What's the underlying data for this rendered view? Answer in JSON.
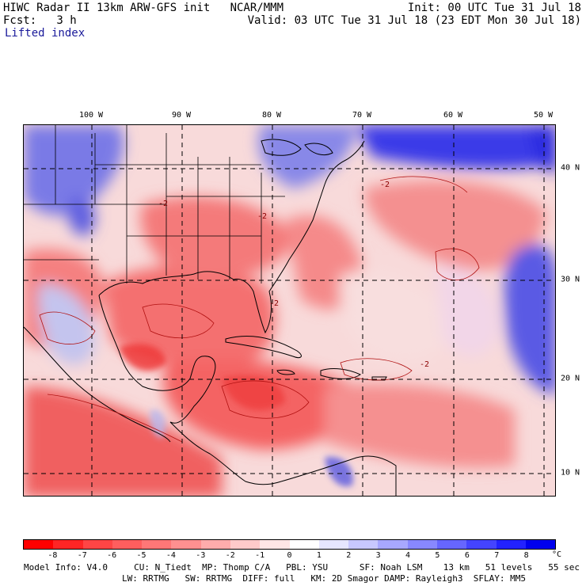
{
  "header": {
    "title": "HIWC Radar II 13km ARW-GFS init   NCAR/MMM",
    "fcst": "Fcst:   3 h",
    "field": "Lifted index",
    "init": "Init: 00 UTC Tue 31 Jul 18",
    "valid": "Valid: 03 UTC Tue 31 Jul 18 (23 EDT Mon 30 Jul 18)"
  },
  "map": {
    "lon_labels": [
      "100 W",
      "90 W",
      "80 W",
      "70 W",
      "60 W",
      "50 W"
    ],
    "lat_labels": [
      "40 N",
      "30 N",
      "20 N",
      "10 N"
    ],
    "contour_labels": [
      "-2",
      "-2",
      "-2",
      "-2",
      "-2"
    ],
    "colors": {
      "land_outline": "#000000",
      "ocean_neutral": "#f7e6e6",
      "warm_strong": "#ee2c2c",
      "warm_mid": "#f47b7b",
      "warm_light": "#f8b0b0",
      "cool_light": "#c8c8f4",
      "cool_mid": "#8a8ae8",
      "cool_strong": "#1a1ae6"
    }
  },
  "colorbar": {
    "labels": [
      "-8",
      "-7",
      "-6",
      "-5",
      "-4",
      "-3",
      "-2",
      "-1",
      "0",
      "1",
      "2",
      "3",
      "4",
      "5",
      "6",
      "7",
      "8"
    ],
    "unit": "°C",
    "colors": [
      "#ff0000",
      "#ff2525",
      "#ff4545",
      "#ff5e5e",
      "#ff7777",
      "#ff9090",
      "#ffacac",
      "#ffcaca",
      "#ffe6e6",
      "#ffffff",
      "#e6e6ff",
      "#c8c8ff",
      "#a8a8ff",
      "#8888ff",
      "#6666ff",
      "#4444ff",
      "#2222ff",
      "#0000ee"
    ]
  },
  "model_info": {
    "line1": "Model Info: V4.0     CU: N_Tiedt  MP: Thomp C/A   PBL: YSU      SF: Noah LSM    13 km   51 levels   55 sec",
    "line2": "LW: RRTMG   SW: RRTMG  DIFF: full   KM: 2D Smagor DAMP: Rayleigh3  SFLAY: MM5"
  }
}
